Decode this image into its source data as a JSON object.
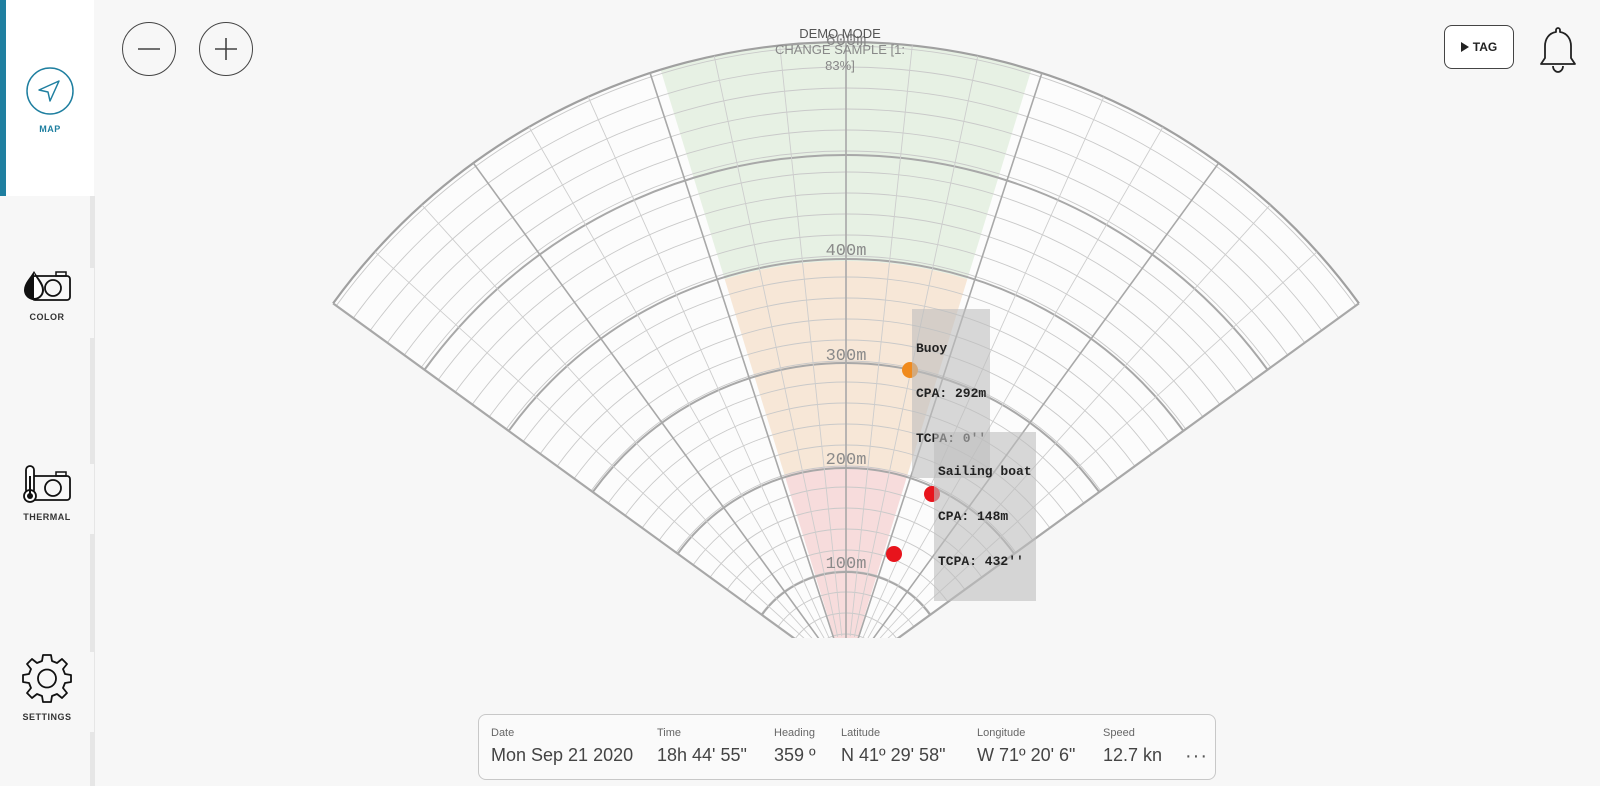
{
  "sidebar": {
    "items": [
      {
        "label": "MAP",
        "icon": "navigation-arrow-icon",
        "active": true
      },
      {
        "label": "COLOR",
        "icon": "color-camera-icon",
        "active": false
      },
      {
        "label": "THERMAL",
        "icon": "thermal-camera-icon",
        "active": false
      },
      {
        "label": "SETTINGS",
        "icon": "gear-icon",
        "active": false
      }
    ]
  },
  "header": {
    "mode": "DEMO MODE",
    "sample": "CHANGE SAMPLE [1: 83%]",
    "tag_label": "TAG"
  },
  "radar": {
    "range_labels": [
      "100m",
      "200m",
      "300m",
      "400m",
      "600m"
    ],
    "targets": [
      {
        "name": "Buoy",
        "cpa": "CPA: 292m",
        "tcpa": "TCPA: 0''",
        "color": "#f08a1c"
      },
      {
        "name": "Sailing boat",
        "cpa": "CPA: 148m",
        "tcpa": "TCPA: 432''",
        "color": "#e8141c"
      },
      {
        "name": "",
        "cpa": "",
        "tcpa": "",
        "color": "#e8141c"
      }
    ],
    "zone_colors": {
      "near": "#f6d6d6",
      "mid": "#f6e3d0",
      "far": "#e3efdf"
    }
  },
  "info": {
    "date_label": "Date",
    "date": "Mon Sep 21 2020",
    "time_label": "Time",
    "time": "18h 44' 55\"",
    "heading_label": "Heading",
    "heading": "359 º",
    "latitude_label": "Latitude",
    "latitude": "N 41º 29' 58\"",
    "longitude_label": "Longitude",
    "longitude": "W 71º 20' 6\"",
    "speed_label": "Speed",
    "speed": "12.7 kn",
    "more": "···"
  }
}
